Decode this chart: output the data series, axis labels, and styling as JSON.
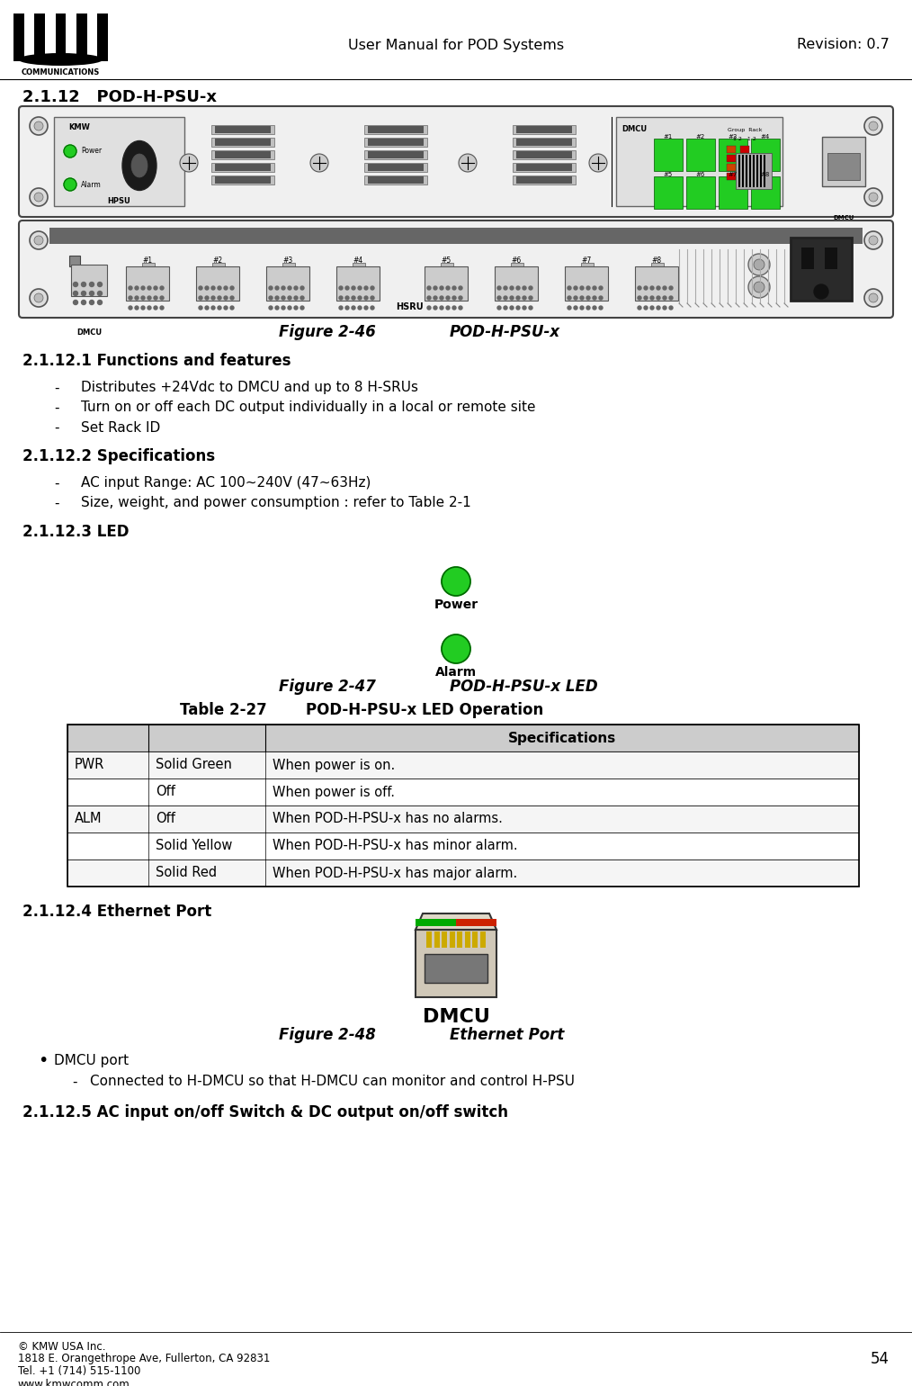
{
  "title_center": "User Manual for POD Systems",
  "title_right": "Revision: 0.7",
  "section": "2.1.12   POD-H-PSU-x",
  "fig246_caption_left": "Figure 2-46",
  "fig246_caption_right": "POD-H-PSU-x",
  "sec2112_1": "2.1.12.1 Functions and features",
  "bullet1": "Distributes +24Vdc to DMCU and up to 8 H-SRUs",
  "bullet2": "Turn on or off each DC output individually in a local or remote site",
  "bullet3": "Set Rack ID",
  "sec2112_2": "2.1.12.2 Specifications",
  "spec1": "AC input Range: AC 100~240V (47~63Hz)",
  "spec2": "Size, weight, and power consumption : refer to Table 2-1",
  "sec2112_3": "2.1.12.3 LED",
  "led_power_label": "Power",
  "led_alarm_label": "Alarm",
  "fig247_caption_left": "Figure 2-47",
  "fig247_caption_right": "POD-H-PSU-x LED",
  "table_title_left": "Table 2-27",
  "table_title_right": "POD-H-PSU-x LED Operation",
  "table_header": "Specifications",
  "table_rows": [
    [
      "PWR",
      "Solid Green",
      "When power is on."
    ],
    [
      "",
      "Off",
      "When power is off."
    ],
    [
      "ALM",
      "Off",
      "When POD-H-PSU-x has no alarms."
    ],
    [
      "",
      "Solid Yellow",
      "When POD-H-PSU-x has minor alarm."
    ],
    [
      "",
      "Solid Red",
      "When POD-H-PSU-x has major alarm."
    ]
  ],
  "sec2112_4": "2.1.12.4 Ethernet Port",
  "fig248_caption_left": "Figure 2-48",
  "fig248_caption_right": "Ethernet Port",
  "dmcu_label": "DMCU",
  "bullet_dmcu": "DMCU port",
  "sub_dmcu": "Connected to H-DMCU so that H-DMCU can monitor and control H-PSU",
  "sec2112_5": "2.1.12.5 AC input on/off Switch & DC output on/off switch",
  "footer_left": [
    "© KMW USA Inc.",
    "1818 E. Orangethrope Ave, Fullerton, CA 92831",
    "Tel. +1 (714) 515-1100",
    "www.kmwcomm.com"
  ],
  "footer_page": "54",
  "bg_color": "#ffffff",
  "table_header_bg": "#cccccc",
  "green_led": "#22cc22",
  "dark_green_led": "#006600"
}
